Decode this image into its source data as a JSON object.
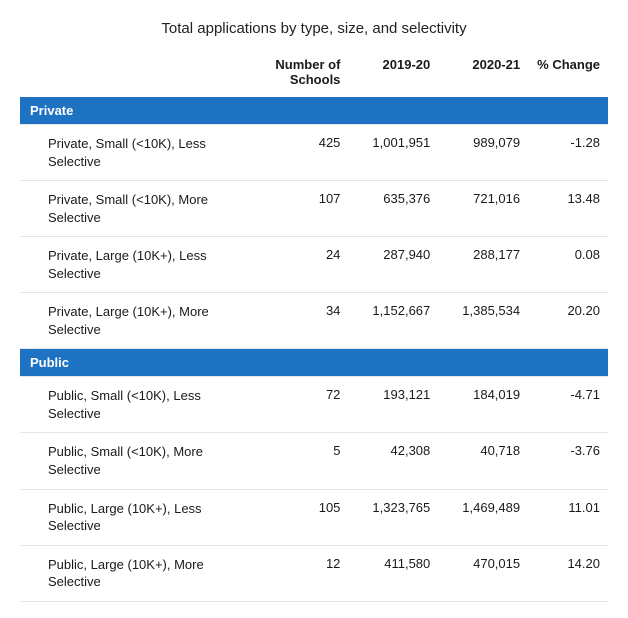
{
  "title": "Total applications by type, size, and selectivity",
  "columns": {
    "c0": "",
    "c1": "Number of Schools",
    "c2": "2019-20",
    "c3": "2020-21",
    "c4": "% Change"
  },
  "section_colors": {
    "header_bg": "#1d72c2",
    "header_text": "#ffffff",
    "row_border": "#e6e6e6"
  },
  "sections": [
    {
      "name": "Private",
      "rows": [
        {
          "label": "Private, Small (<10K), Less Selective",
          "schools": "425",
          "y1": "1,001,951",
          "y2": "989,079",
          "chg": "-1.28"
        },
        {
          "label": "Private, Small (<10K), More Selective",
          "schools": "107",
          "y1": "635,376",
          "y2": "721,016",
          "chg": "13.48"
        },
        {
          "label": "Private, Large (10K+), Less Selective",
          "schools": "24",
          "y1": "287,940",
          "y2": "288,177",
          "chg": "0.08"
        },
        {
          "label": "Private, Large (10K+), More Selective",
          "schools": "34",
          "y1": "1,152,667",
          "y2": "1,385,534",
          "chg": "20.20"
        }
      ]
    },
    {
      "name": "Public",
      "rows": [
        {
          "label": "Public, Small (<10K), Less Selective",
          "schools": "72",
          "y1": "193,121",
          "y2": "184,019",
          "chg": "-4.71"
        },
        {
          "label": "Public, Small (<10K), More Selective",
          "schools": "5",
          "y1": "42,308",
          "y2": "40,718",
          "chg": "-3.76"
        },
        {
          "label": "Public, Large (10K+), Less Selective",
          "schools": "105",
          "y1": "1,323,765",
          "y2": "1,469,489",
          "chg": "11.01"
        },
        {
          "label": "Public, Large (10K+), More Selective",
          "schools": "12",
          "y1": "411,580",
          "y2": "470,015",
          "chg": "14.20"
        }
      ]
    }
  ]
}
